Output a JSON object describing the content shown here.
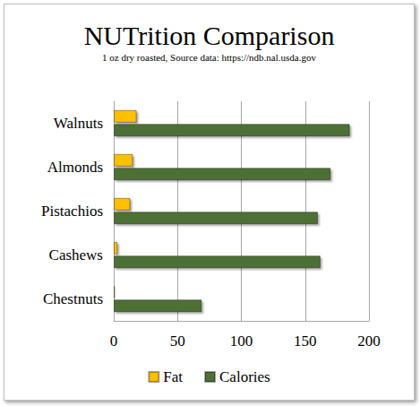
{
  "chart_data": {
    "type": "bar",
    "orientation": "horizontal",
    "title": "NUTrition Comparison",
    "subtitle": "1 oz dry roasted, Source data: https://ndb.nal.usda.gov",
    "categories": [
      "Walnuts",
      "Almonds",
      "Pistachios",
      "Cashews",
      "Chestnuts"
    ],
    "series": [
      {
        "name": "Fat",
        "color": "#ffc000",
        "values": [
          18,
          15,
          13,
          3,
          1
        ]
      },
      {
        "name": "Calories",
        "color": "#4e6f36",
        "values": [
          185,
          170,
          160,
          162,
          69
        ]
      }
    ],
    "xlim": [
      0,
      200
    ],
    "xticks": [
      0,
      50,
      100,
      150,
      200
    ],
    "grid": true,
    "legend": "bottom"
  }
}
